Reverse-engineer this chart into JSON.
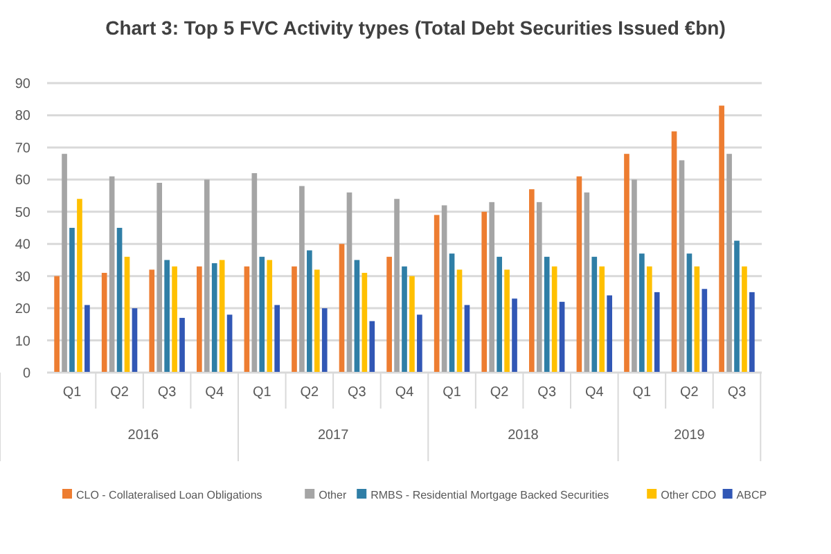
{
  "chart_data": {
    "type": "bar",
    "title": "Chart 3: Top 5 FVC Activity types (Total Debt Securities Issued €bn)",
    "categories": [
      "Q1",
      "Q2",
      "Q3",
      "Q4",
      "Q1",
      "Q2",
      "Q3",
      "Q4",
      "Q1",
      "Q2",
      "Q3",
      "Q4",
      "Q1",
      "Q2",
      "Q3"
    ],
    "annotations": [
      "2016",
      "2017",
      "2018",
      "2019"
    ],
    "series": [
      {
        "name": "CLO - Collateralised Loan Obligations",
        "color": "#ed7d31",
        "values": [
          30,
          31,
          32,
          33,
          33,
          33,
          40,
          36,
          49,
          50,
          57,
          61,
          68,
          75,
          83
        ]
      },
      {
        "name": "Other",
        "color": "#a5a5a5",
        "values": [
          68,
          61,
          59,
          60,
          62,
          58,
          56,
          54,
          52,
          53,
          53,
          56,
          60,
          66,
          68
        ]
      },
      {
        "name": "RMBS - Residential Mortgage Backed Securities",
        "color": "#2f7ea6",
        "values": [
          45,
          45,
          35,
          34,
          36,
          38,
          35,
          33,
          37,
          36,
          36,
          36,
          37,
          37,
          41
        ]
      },
      {
        "name": "Other CDO",
        "color": "#ffc000",
        "values": [
          54,
          36,
          33,
          35,
          35,
          32,
          31,
          30,
          32,
          32,
          33,
          33,
          33,
          33,
          33
        ]
      },
      {
        "name": "ABCP",
        "color": "#3157b5",
        "values": [
          21,
          20,
          17,
          18,
          21,
          20,
          16,
          18,
          21,
          23,
          22,
          24,
          25,
          26,
          25
        ]
      }
    ],
    "ylim": [
      0,
      90
    ],
    "yticks": [
      0,
      10,
      20,
      30,
      40,
      50,
      60,
      70,
      80,
      90
    ],
    "grid": "y",
    "legend": "bottom"
  }
}
